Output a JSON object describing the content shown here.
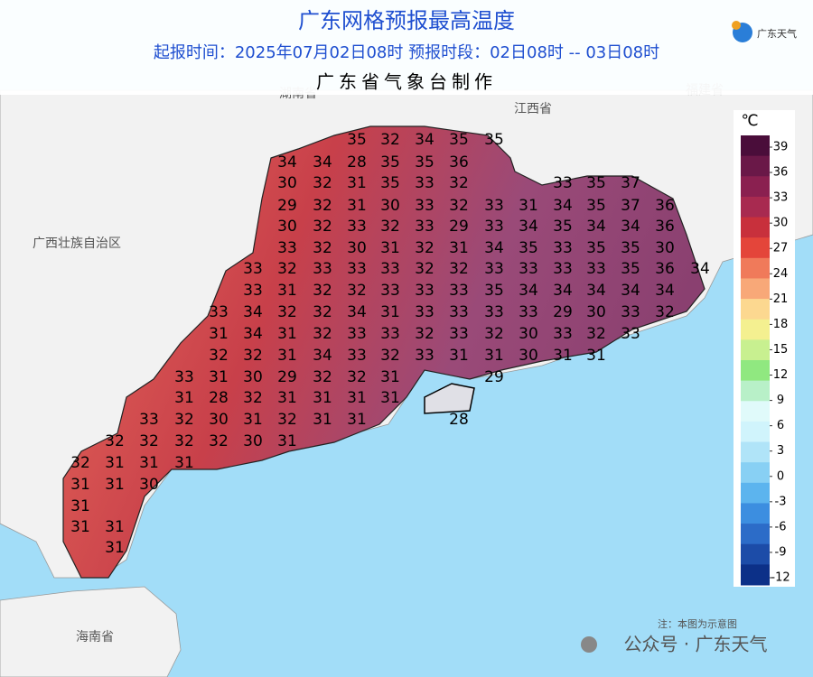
{
  "header": {
    "title": "广东网格预报最高温度",
    "subtitle": "起报时间：2025年07月02日08时   预报时段：02日08时 -- 03日08时",
    "producer": "广东省气象台制作",
    "logo": "广东天气"
  },
  "regions": [
    "湖南省",
    "江西省",
    "福建省",
    "广西壮族自治区",
    "海南省"
  ],
  "temperatures": [
    35,
    32,
    34,
    35,
    35,
    34,
    34,
    28,
    35,
    35,
    36,
    30,
    32,
    31,
    35,
    33,
    32,
    33,
    35,
    37,
    29,
    32,
    31,
    30,
    33,
    32,
    33,
    31,
    34,
    35,
    37,
    36,
    30,
    32,
    33,
    32,
    33,
    29,
    33,
    34,
    35,
    34,
    34,
    36,
    33,
    32,
    30,
    31,
    32,
    31,
    34,
    35,
    33,
    35,
    35,
    30,
    33,
    32,
    33,
    33,
    33,
    32,
    32,
    33,
    33,
    33,
    33,
    35,
    36,
    34,
    33,
    31,
    32,
    32,
    33,
    33,
    33,
    35,
    34,
    34,
    34,
    34,
    34,
    33,
    34,
    32,
    32,
    34,
    31,
    33,
    33,
    33,
    33,
    29,
    30,
    33,
    32,
    31,
    34,
    31,
    32,
    33,
    33,
    32,
    33,
    32,
    30,
    33,
    32,
    33,
    32,
    32,
    31,
    34,
    33,
    32,
    33,
    31,
    31,
    30,
    31,
    31,
    33,
    31,
    30,
    29,
    32,
    32,
    31,
    29,
    31,
    28,
    32,
    31,
    31,
    31,
    31,
    33,
    32,
    30,
    31,
    32,
    31,
    31,
    28,
    32,
    32,
    32,
    32,
    30,
    31,
    32,
    31,
    31,
    31,
    31,
    31,
    30,
    31,
    31,
    31,
    31
  ],
  "legend": {
    "unit": "℃",
    "ticks": [
      39,
      36,
      33,
      30,
      27,
      24,
      21,
      18,
      15,
      12,
      9,
      6,
      3,
      0,
      -3,
      -6,
      -9,
      -12
    ],
    "colors": [
      "#4a0d3a",
      "#6a1848",
      "#8a2050",
      "#a82a50",
      "#c8303c",
      "#e4453a",
      "#f07a5a",
      "#f8a878",
      "#fcd890",
      "#f4f090",
      "#c8f090",
      "#90e880",
      "#b8f0c8",
      "#e0fafa",
      "#d0f4fc",
      "#b0e4f8",
      "#88d0f4",
      "#5cb4ee",
      "#3c8ee0",
      "#2c6cc8",
      "#1c4ca8",
      "#0c3088"
    ]
  },
  "note": "注：本图为示意图",
  "watermark": "公众号 · 广东天气"
}
